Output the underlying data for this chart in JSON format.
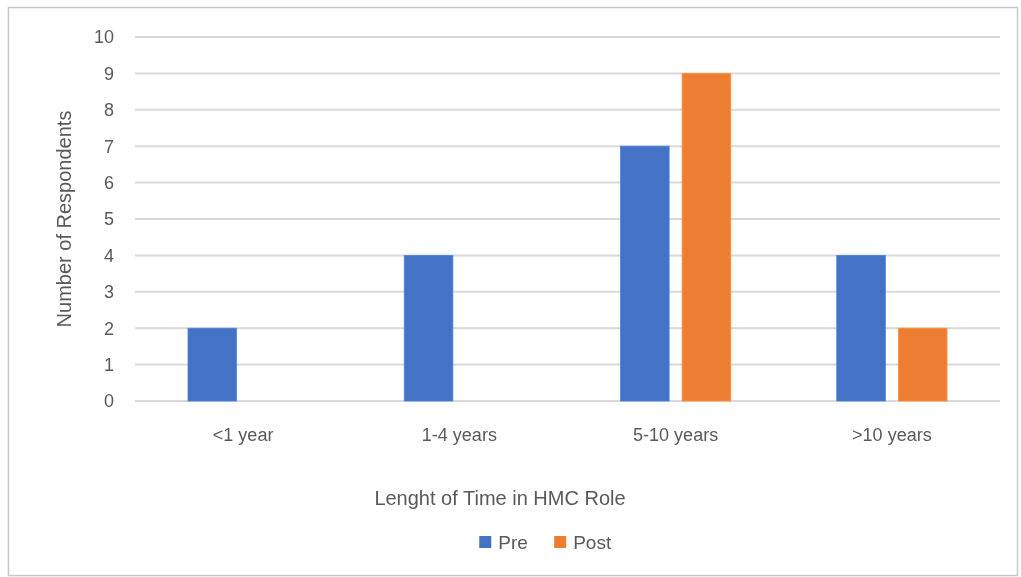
{
  "chart_data": {
    "type": "bar",
    "xlabel": "Lenght of Time in HMC Role",
    "ylabel": "Number of Respondents",
    "categories": [
      "<1 year",
      "1-4 years",
      "5-10 years",
      ">10 years"
    ],
    "series": [
      {
        "name": "Pre",
        "color": "#4472c4",
        "values": [
          2,
          4,
          7,
          4
        ]
      },
      {
        "name": "Post",
        "color": "#ed7d31",
        "values": [
          0,
          0,
          9,
          2
        ]
      }
    ],
    "ylim": [
      0,
      10
    ],
    "yticks": [
      0,
      1,
      2,
      3,
      4,
      5,
      6,
      7,
      8,
      9,
      10
    ],
    "grid": "y",
    "legend": "bottom"
  }
}
